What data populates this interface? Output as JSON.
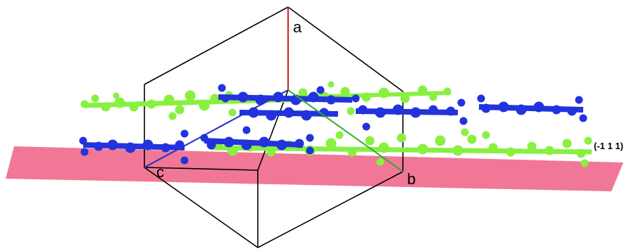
{
  "axes": {
    "a": "a",
    "b": "b",
    "c": "c"
  },
  "plane": {
    "label": "(-1 1 1)",
    "color": "#f07090"
  },
  "colors": {
    "molecule_green": "#88f040",
    "molecule_blue": "#2233dd",
    "axis_a": "#cc2222",
    "axis_b": "#33aa33",
    "axis_c": "#2233cc",
    "cell_edge": "#000000"
  }
}
